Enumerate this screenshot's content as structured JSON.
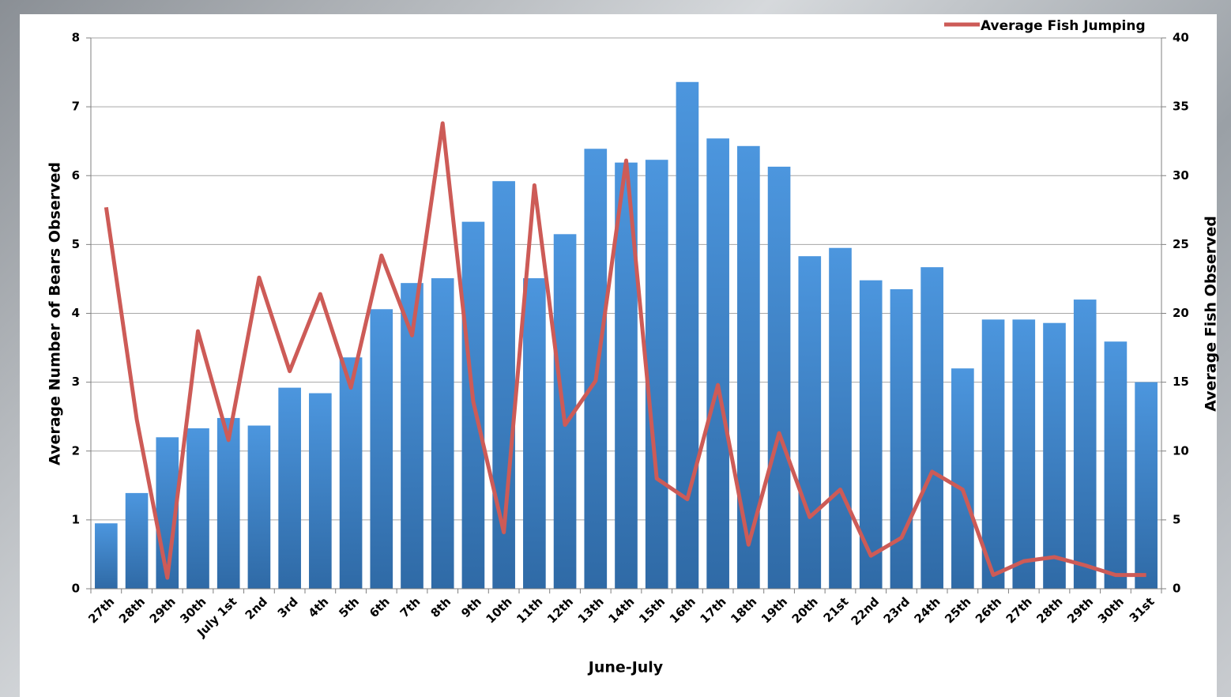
{
  "chart_data": {
    "type": "bar-line",
    "xlabel": "June-July",
    "ylabel": "Average Number of Bears Observed",
    "y2label": "Average Fish Observed",
    "categories": [
      "27th",
      "28th",
      "29th",
      "30th",
      "July 1st",
      "2nd",
      "3rd",
      "4th",
      "5th",
      "6th",
      "7th",
      "8th",
      "9th",
      "10th",
      "11th",
      "12th",
      "13th",
      "14th",
      "15th",
      "16th",
      "17th",
      "18th",
      "19th",
      "20th",
      "21st",
      "22nd",
      "23rd",
      "24th",
      "25th",
      "26th",
      "27th",
      "28th",
      "29th",
      "30th",
      "31st"
    ],
    "series": [
      {
        "type": "bar",
        "color": "#3f85cf",
        "values": [
          0.95,
          1.39,
          2.2,
          2.33,
          2.48,
          2.37,
          2.92,
          2.84,
          3.36,
          4.06,
          4.44,
          4.51,
          5.33,
          5.92,
          4.51,
          5.15,
          6.39,
          6.19,
          6.23,
          7.36,
          6.54,
          6.43,
          6.13,
          4.83,
          4.95,
          4.48,
          4.35,
          4.67,
          3.2,
          3.91,
          3.91,
          3.86,
          4.2,
          3.59,
          3.0
        ]
      },
      {
        "type": "line",
        "name": "Average Fish Jumping",
        "color": "#cd5b57",
        "axis": "y2",
        "values": [
          27.7,
          12.3,
          0.8,
          18.7,
          10.8,
          22.6,
          15.8,
          21.4,
          14.6,
          24.2,
          18.4,
          33.8,
          13.6,
          4.1,
          29.3,
          11.9,
          15.1,
          31.1,
          8.0,
          6.5,
          14.8,
          3.2,
          11.3,
          5.2,
          7.2,
          2.4,
          3.7,
          8.5,
          7.2,
          1.0,
          2.0,
          2.3,
          1.7,
          1.0,
          1.0
        ]
      }
    ],
    "ylim": [
      0,
      8
    ],
    "yticks": [
      0,
      1,
      2,
      3,
      4,
      5,
      6,
      7,
      8
    ],
    "y2lim": [
      0,
      40
    ],
    "y2ticks": [
      0,
      5,
      10,
      15,
      20,
      25,
      30,
      35,
      40
    ],
    "grid": true,
    "legend": "top-right"
  }
}
